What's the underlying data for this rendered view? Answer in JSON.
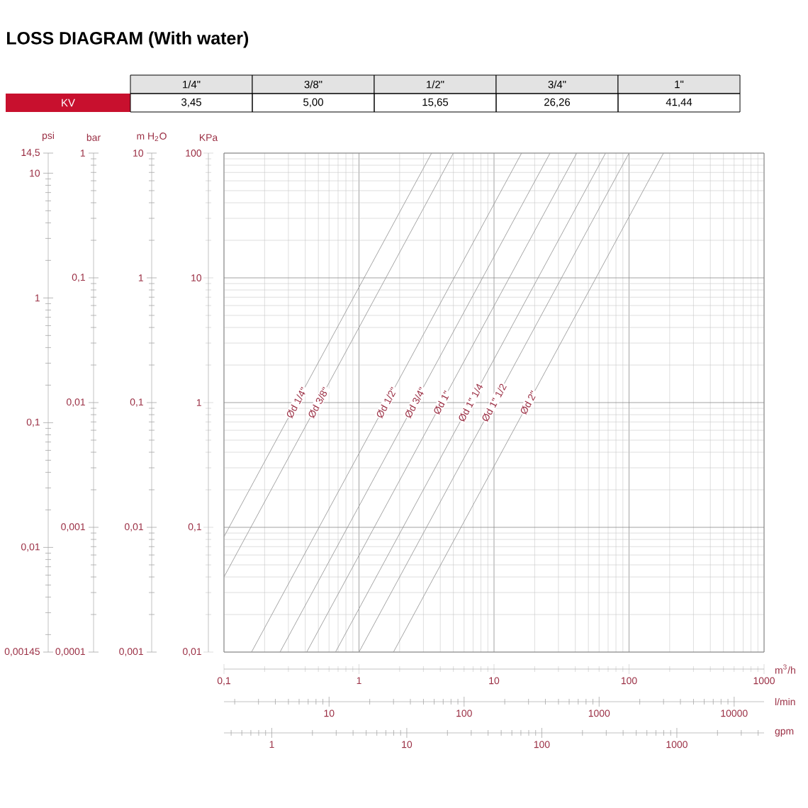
{
  "chart_data": [
    {
      "type": "other",
      "title": "LOSS DIAGRAM (With water)",
      "categories": [
        "1/4\"",
        "3/8\"",
        "1/2\"",
        "3/4\"",
        "1\""
      ],
      "annotations": [
        "KV",
        "3,45",
        "5,00",
        "15,65",
        "26,26",
        "41,44"
      ]
    },
    {
      "type": "line",
      "xlabel": "m$^{3}$/h",
      "ylabel": "KPa",
      "log": "xy",
      "grid": true,
      "xlim": [
        0.1,
        1000
      ],
      "xticks": [
        {
          "value": 0.1,
          "label": "0,1"
        },
        1,
        10,
        100,
        1000
      ],
      "ylim": [
        0.01,
        100
      ],
      "yticks": [
        {
          "value": 0.01,
          "label": "0,01"
        },
        {
          "value": 0.1,
          "label": "0,1"
        },
        1,
        10,
        100
      ],
      "series": [
        {
          "name": "Ød 1/4\"",
          "color": "#9a9a9a",
          "x": [
            0.1,
            3.45
          ],
          "values": [
            0.084,
            100
          ]
        },
        {
          "name": "Ød 3/8\"",
          "color": "#9a9a9a",
          "x": [
            0.1,
            5.0
          ],
          "values": [
            0.04,
            100
          ]
        },
        {
          "name": "Ød 1/2\"",
          "color": "#9a9a9a",
          "x": [
            0.16,
            16
          ],
          "values": [
            0.01,
            100
          ]
        },
        {
          "name": "Ød 3/4\"",
          "color": "#9a9a9a",
          "x": [
            0.26,
            26
          ],
          "values": [
            0.01,
            100
          ]
        },
        {
          "name": "Ød 1\"",
          "color": "#9a9a9a",
          "x": [
            0.41,
            41
          ],
          "values": [
            0.01,
            100
          ]
        },
        {
          "name": "Ød 1\" 1/4",
          "color": "#9a9a9a",
          "x": [
            0.67,
            67
          ],
          "values": [
            0.01,
            100
          ]
        },
        {
          "name": "Ød 1\" 1/2",
          "color": "#9a9a9a",
          "x": [
            1.0,
            100
          ],
          "values": [
            0.01,
            100
          ]
        },
        {
          "name": "Ød 2\"",
          "color": "#9a9a9a",
          "x": [
            1.8,
            180
          ],
          "values": [
            0.01,
            100
          ]
        }
      ]
    },
    {
      "type": "other",
      "ylabel": "psi",
      "annotations": [
        "0,00145",
        "0,01",
        "0,1",
        "1",
        "10",
        "14,5"
      ]
    },
    {
      "type": "other",
      "ylabel": "bar",
      "annotations": [
        "0,0001",
        "0,001",
        "0,01",
        "0,1",
        "1"
      ]
    },
    {
      "type": "other",
      "ylabel": "m H$_{2}$O",
      "annotations": [
        "0,001",
        "0,01",
        "0,1",
        "1",
        "10"
      ]
    },
    {
      "type": "other",
      "xlabel": "l/min",
      "annotations": [
        "10",
        "100",
        "1000",
        "10000"
      ]
    },
    {
      "type": "other",
      "xlabel": "gpm",
      "annotations": [
        "1",
        "10",
        "100",
        "1000"
      ]
    }
  ]
}
